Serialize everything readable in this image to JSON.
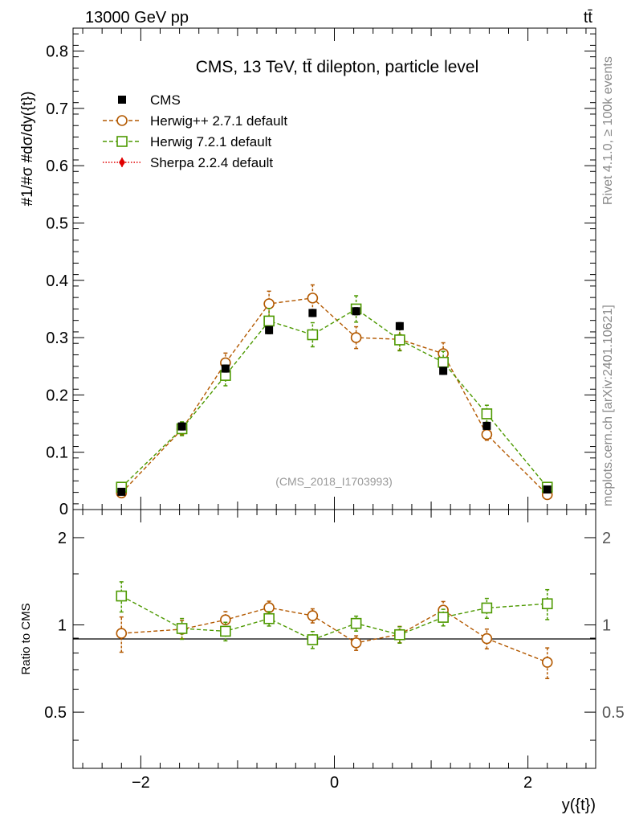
{
  "header": {
    "energy_label": "13000 GeV pp",
    "process_label": "tt̄"
  },
  "side_labels": {
    "rivet": "Rivet 4.1.0, ≥ 100k events",
    "mcplots": "mcplots.cern.ch [arXiv:2401.10621]"
  },
  "chart_data": {
    "type": "scatter",
    "title": "CMS, 13 TeV, tt̄ dilepton, particle level",
    "analysis_id": "(CMS_2018_I1703993)",
    "xlabel": "y({t})",
    "ylabel": "#1/#σ #dσ/dy({t})",
    "ratio_ylabel": "Ratio to CMS",
    "xlim": [
      -2.7,
      2.7
    ],
    "ylim": [
      0,
      0.84
    ],
    "ratio_ylim": [
      0.32,
      2.5
    ],
    "x_ticks": [
      -2,
      0,
      2
    ],
    "y_ticks": [
      0.1,
      0.2,
      0.3,
      0.4,
      0.5,
      0.6,
      0.7,
      0.8
    ],
    "y_tick_labels": [
      "0.1",
      "0.2",
      "0.3",
      "0.4",
      "0.5",
      "0.6",
      "0.7",
      "0.8"
    ],
    "y_zero_label": "0",
    "ratio_ticks": [
      0.5,
      1,
      2
    ],
    "ratio_tick_labels": [
      "0.5",
      "1",
      "2"
    ],
    "x": [
      -2.2,
      -1.575,
      -1.125,
      -0.675,
      -0.225,
      0.225,
      0.675,
      1.125,
      1.575,
      2.2
    ],
    "series": [
      {
        "name": "CMS",
        "color": "#000000",
        "marker": "filled-square",
        "values": [
          0.031,
          0.145,
          0.246,
          0.313,
          0.343,
          0.346,
          0.32,
          0.242,
          0.146,
          0.035
        ],
        "errors": [
          0.003,
          0.006,
          0.006,
          0.006,
          0.006,
          0.006,
          0.006,
          0.006,
          0.006,
          0.003
        ]
      },
      {
        "name": "Herwig++ 2.7.1 default",
        "color": "#b35900",
        "marker": "open-circle",
        "values": [
          0.029,
          0.14,
          0.256,
          0.359,
          0.369,
          0.3,
          0.297,
          0.272,
          0.131,
          0.026
        ],
        "errors": [
          0.004,
          0.01,
          0.017,
          0.022,
          0.023,
          0.019,
          0.019,
          0.019,
          0.01,
          0.003
        ],
        "ratio": [
          0.935,
          0.966,
          1.041,
          1.147,
          1.076,
          0.867,
          0.928,
          1.124,
          0.897,
          0.743
        ],
        "ratio_errors": [
          0.13,
          0.07,
          0.07,
          0.06,
          0.06,
          0.05,
          0.06,
          0.08,
          0.07,
          0.09
        ]
      },
      {
        "name": "Herwig 7.2.1 default",
        "color": "#4d9900",
        "marker": "open-square",
        "values": [
          0.039,
          0.141,
          0.234,
          0.329,
          0.305,
          0.35,
          0.296,
          0.257,
          0.167,
          0.039
        ],
        "errors": [
          0.005,
          0.012,
          0.018,
          0.022,
          0.021,
          0.023,
          0.019,
          0.019,
          0.015,
          0.005
        ],
        "ratio": [
          1.258,
          0.972,
          0.951,
          1.051,
          0.889,
          1.012,
          0.925,
          1.062,
          1.144,
          1.183
        ],
        "ratio_errors": [
          0.15,
          0.08,
          0.07,
          0.06,
          0.06,
          0.06,
          0.06,
          0.07,
          0.09,
          0.14
        ]
      },
      {
        "name": "Sherpa 2.2.4 default",
        "color": "#e00000",
        "marker": "filled-diamond",
        "values": [],
        "errors": []
      }
    ]
  }
}
